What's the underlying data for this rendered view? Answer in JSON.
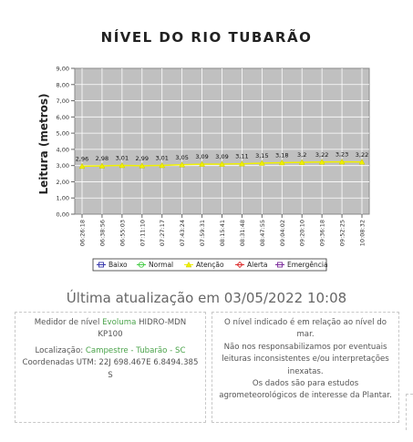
{
  "title": "NÍVEL DO RIO TUBARÃO",
  "chart_data": {
    "type": "line",
    "title": "",
    "xlabel": "",
    "ylabel": "Leitura (metros)",
    "ylim": [
      0,
      9
    ],
    "y_ticks": [
      "0,00",
      "1,00",
      "2,00",
      "3,00",
      "4,00",
      "5,00",
      "6,00",
      "7,00",
      "8,00",
      "9,00"
    ],
    "grid": true,
    "legend_position": "bottom",
    "x": [
      "06:26:18",
      "06:38:56",
      "06:55:03",
      "07:11:10",
      "07:27:17",
      "07:43:24",
      "07:59:31",
      "08:15:41",
      "08:31:48",
      "08:47:55",
      "09:04:02",
      "09:20:10",
      "09:36:18",
      "09:52:25",
      "10:08:32"
    ],
    "series": [
      {
        "name": "Atenção",
        "values": [
          2.96,
          2.98,
          3.01,
          2.99,
          3.01,
          3.05,
          3.09,
          3.09,
          3.11,
          3.15,
          3.18,
          3.2,
          3.22,
          3.23,
          3.22
        ],
        "labels": [
          "2,96",
          "2,98",
          "3,01",
          "2,99",
          "3,01",
          "3,05",
          "3,09",
          "3,09",
          "3,11",
          "3,15",
          "3,18",
          "3,2",
          "3,22",
          "3,23",
          "3,22"
        ]
      }
    ],
    "legend": [
      {
        "name": "Baixo",
        "color": "#3333aa",
        "marker": "square"
      },
      {
        "name": "Normal",
        "color": "#44cc44",
        "marker": "circle"
      },
      {
        "name": "Atenção",
        "color": "#f0f000",
        "marker": "triangle"
      },
      {
        "name": "Alerta",
        "color": "#dd3333",
        "marker": "diamond"
      },
      {
        "name": "Emergência",
        "color": "#7a2a9a",
        "marker": "square"
      }
    ],
    "colors": {
      "plot_bg": "#c0c0c0",
      "grid": "#ffffff",
      "line": "#f0f000"
    }
  },
  "last_update": "Última atualização em 03/05/2022 10:08",
  "info_left": {
    "line1_prefix": "Medidor de nível ",
    "line1_link": "Evoluma",
    "line1_suffix": " HIDRO-MDN KP100",
    "location_label": "Localização: ",
    "location_link": "Campestre - Tubarão - SC",
    "coords": "Coordenadas UTM: 22J 698.467E 6.8494.385 S"
  },
  "info_right": {
    "line1": "O nível indicado é em relação ao nível do mar.",
    "line2": "Não nos responsabilizamos por eventuais leituras inconsistentes e/ou interpretações inexatas.",
    "line3": "Os dados são para estudos agrometeorológicos de interesse da Plantar."
  }
}
